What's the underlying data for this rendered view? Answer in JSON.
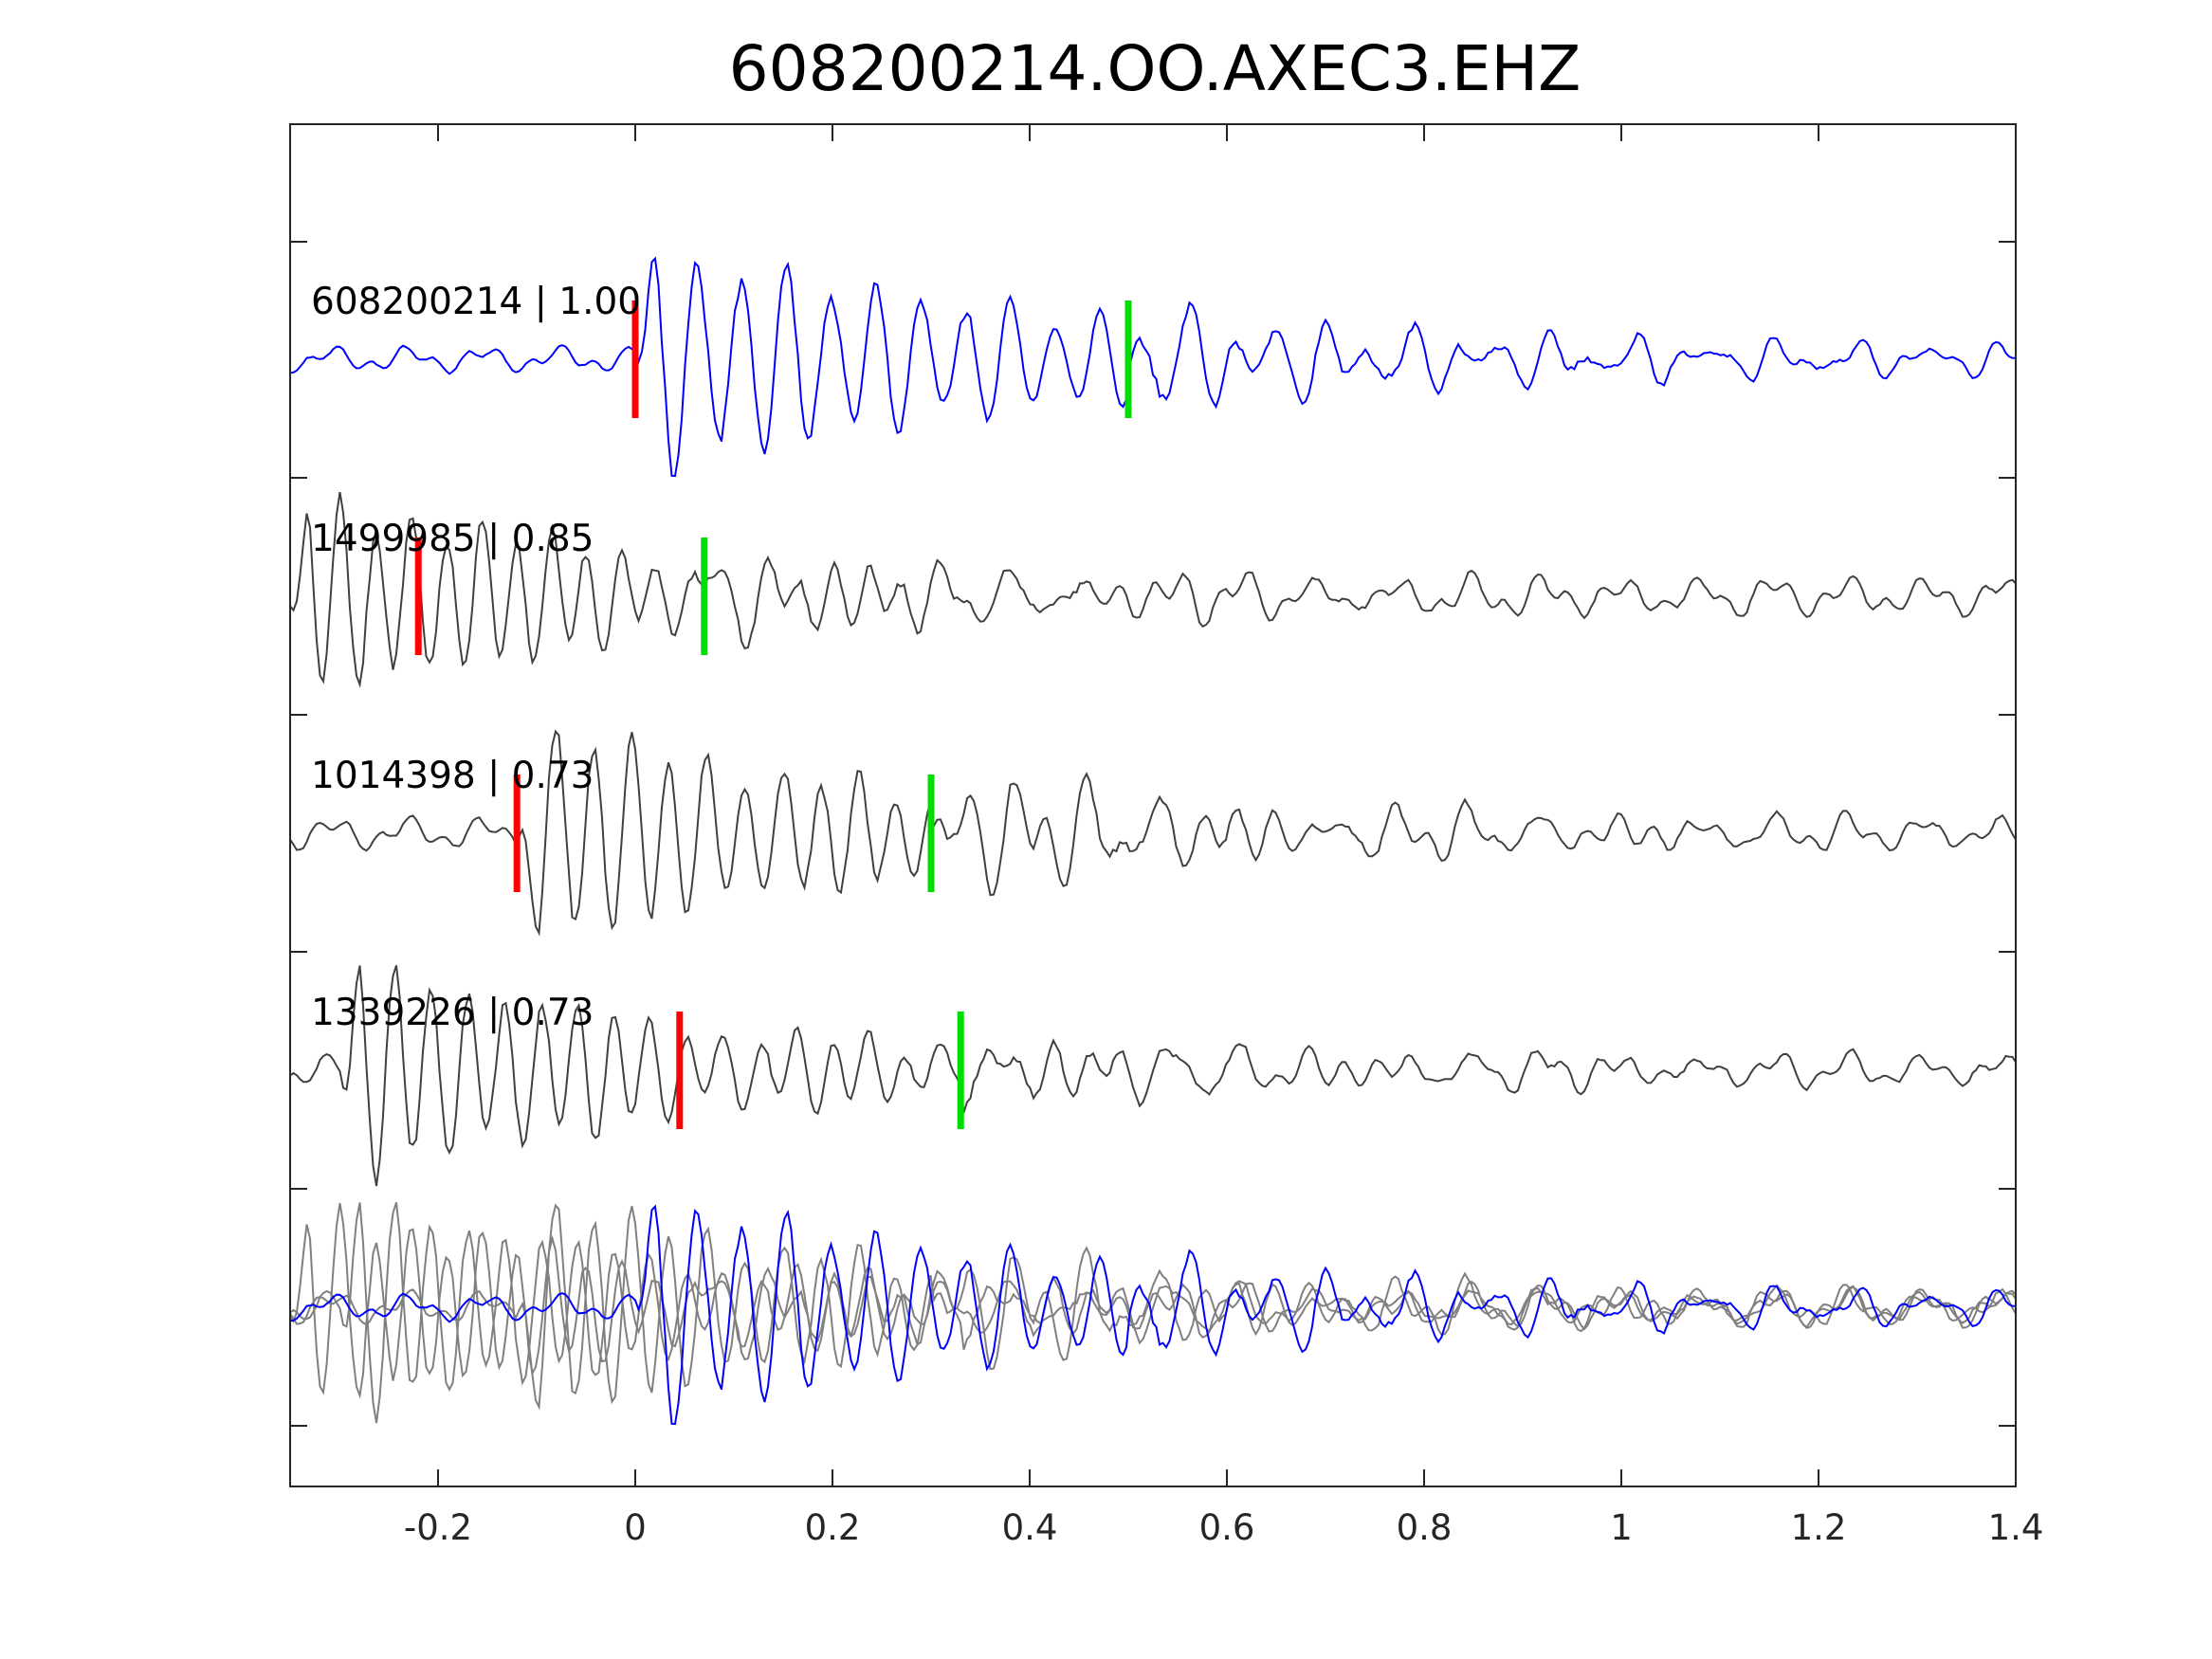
{
  "chart_data": {
    "type": "line",
    "title": "608200214.OO.AXEC3.EHZ",
    "xlabel": "",
    "ylabel": "",
    "xlim": [
      -0.35,
      1.4
    ],
    "xticks": [
      -0.2,
      0,
      0.2,
      0.4,
      0.6,
      0.8,
      1,
      1.2,
      1.4
    ],
    "xtick_labels": [
      "-0.2",
      "0",
      "0.2",
      "0.4",
      "0.6",
      "0.8",
      "1",
      "1.2",
      "1.4"
    ],
    "grid": false,
    "colors": {
      "master": "#0000ff",
      "template": "#404040",
      "overlay": "#808080",
      "p_pick": "#ff0000",
      "s_pick": "#00dd00",
      "axes": "#262626"
    },
    "traces": [
      {
        "id": "608200214",
        "cc": "1.00",
        "label": "608200214 | 1.00",
        "role": "master",
        "p_pick": 0.0,
        "s_pick": 0.5,
        "onset": 0.0,
        "amp": 0.95,
        "freq": 22,
        "decay": 2.2,
        "noise": 0.12,
        "coda": 0.25,
        "seed": 3
      },
      {
        "id": "1499985",
        "cc": "0.85",
        "label": "1499985 | 0.85",
        "role": "template",
        "p_pick": -0.22,
        "s_pick": 0.07,
        "onset": -0.35,
        "amp": 0.95,
        "freq": 28,
        "decay": 3.2,
        "noise": 0.18,
        "coda": 0.2,
        "seed": 7
      },
      {
        "id": "1014398",
        "cc": "0.73",
        "label": "1014398 | 0.73",
        "role": "template",
        "p_pick": -0.12,
        "s_pick": 0.3,
        "onset": -0.12,
        "amp": 0.95,
        "freq": 26,
        "decay": 2.6,
        "noise": 0.15,
        "coda": 0.28,
        "seed": 11
      },
      {
        "id": "1339226",
        "cc": "0.73",
        "label": "1339226 | 0.73",
        "role": "template",
        "p_pick": 0.045,
        "s_pick": 0.33,
        "onset": -0.3,
        "amp": 0.95,
        "freq": 27,
        "decay": 2.8,
        "noise": 0.15,
        "coda": 0.2,
        "seed": 19
      }
    ],
    "overlay": {
      "description": "all traces superimposed, master in blue"
    }
  }
}
